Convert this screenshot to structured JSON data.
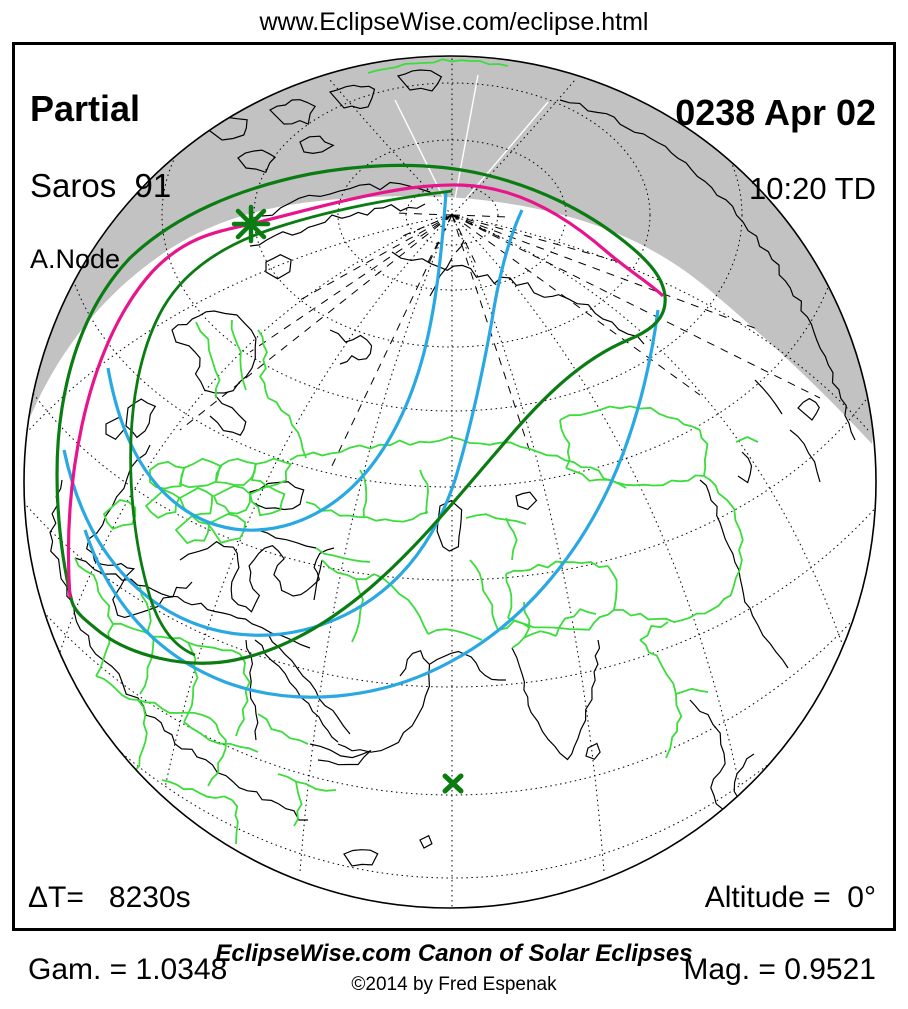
{
  "header": {
    "url_text": "www.EclipseWise.com/eclipse.html"
  },
  "eclipse": {
    "type": "Partial",
    "saros": "Saros  91",
    "node": "A.Node",
    "date": "0238 Apr 02",
    "time": "10:20 TD",
    "delta_t": "ΔT=   8230s",
    "gamma": "Gam. = 1.0348",
    "altitude": "Altitude =  0°",
    "magnitude": "Mag. = 0.9521"
  },
  "markers": {
    "greatest_eclipse_icon": "star-asterisk-icon",
    "subsolar_point_icon": "x-cross-icon"
  },
  "map_colors": {
    "night_region_gray": "#c2c2c2",
    "penumbra_loop_green": "#0b7c12",
    "limit_magenta": "#e8148c",
    "time_curve_blue": "#29a8e2",
    "country_border_green": "#3cdc3c",
    "coastline_black": "#000000"
  },
  "footer": {
    "title": "EclipseWise.com Canon of Solar Eclipses",
    "copyright": "©2014 by Fred Espenak"
  }
}
